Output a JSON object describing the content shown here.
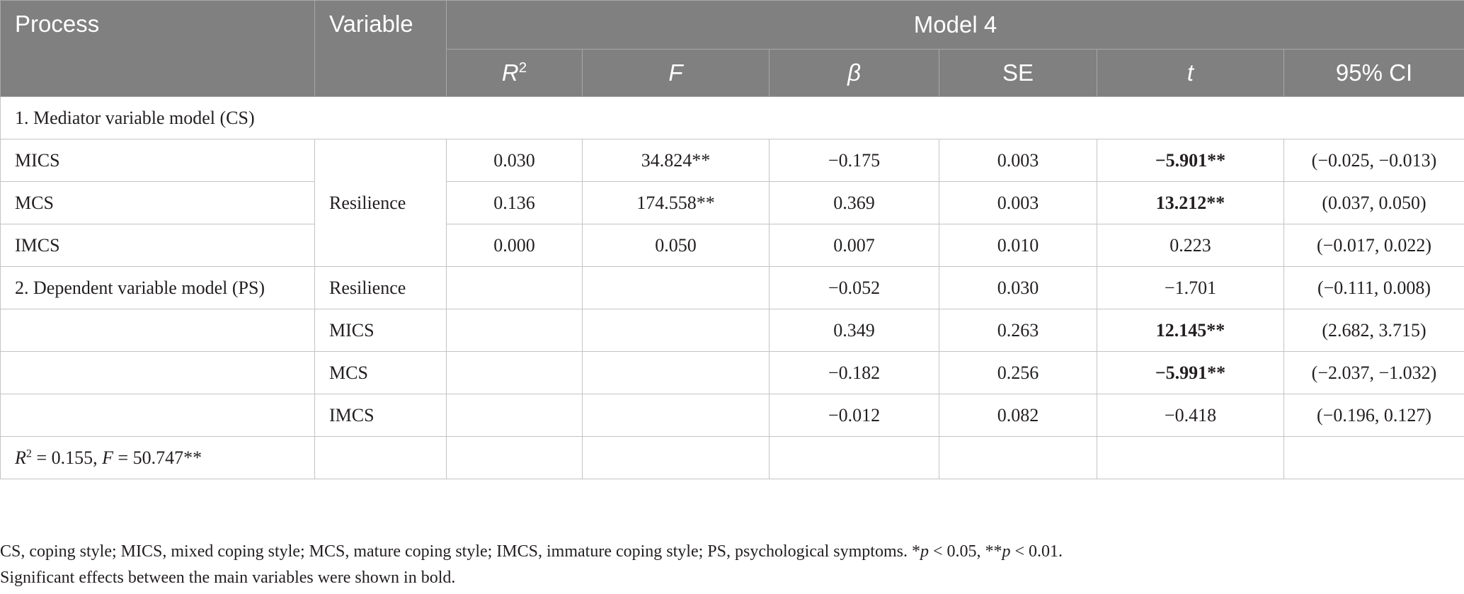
{
  "header": {
    "process": "Process",
    "variable": "Variable",
    "model": "Model 4",
    "cols": {
      "r2_base": "R",
      "r2_sup": "2",
      "f": "F",
      "beta": "β",
      "se": "SE",
      "t": "t",
      "ci": "95% CI"
    }
  },
  "sections": {
    "mediator": "1. Mediator variable model (CS)",
    "dependent": "2. Dependent variable model (PS)"
  },
  "mediator_rows": [
    {
      "process": "MICS",
      "r2": "0.030",
      "f": "34.824**",
      "beta": "−0.175",
      "se": "0.003",
      "t": "−5.901**",
      "ci": "(−0.025, −0.013)"
    },
    {
      "process": "MCS",
      "r2": "0.136",
      "f": "174.558**",
      "beta": "0.369",
      "se": "0.003",
      "t": "13.212**",
      "ci": "(0.037, 0.050)"
    },
    {
      "process": "IMCS",
      "r2": "0.000",
      "f": "0.050",
      "beta": "0.007",
      "se": "0.010",
      "t": "0.223",
      "ci": "(−0.017, 0.022)"
    }
  ],
  "mediator_variable": "Resilience",
  "dependent_rows": [
    {
      "variable": "Resilience",
      "beta": "−0.052",
      "se": "0.030",
      "t": "−1.701",
      "ci": "(−0.111, 0.008)"
    },
    {
      "variable": "MICS",
      "beta": "0.349",
      "se": "0.263",
      "t": "12.145**",
      "ci": "(2.682, 3.715)"
    },
    {
      "variable": "MCS",
      "beta": "−0.182",
      "se": "0.256",
      "t": "−5.991**",
      "ci": "(−2.037, −1.032)"
    },
    {
      "variable": "IMCS",
      "beta": "−0.012",
      "se": "0.082",
      "t": "−0.418",
      "ci": "(−0.196, 0.127)"
    }
  ],
  "summary": {
    "r2_base": "R",
    "r2_sup": "2",
    "r2_value": " = 0.155, ",
    "f_label": "F",
    "f_value": " = 50.747**"
  },
  "footnotes": {
    "line1_text": "CS, coping style; MICS, mixed coping style; MCS, mature coping style; IMCS, immature coping style; PS, psychological symptoms. *",
    "p": "p",
    "lt1": " < 0.05, **",
    "lt2": " < 0.01.",
    "line2": "Significant effects between the main variables were shown in bold."
  }
}
